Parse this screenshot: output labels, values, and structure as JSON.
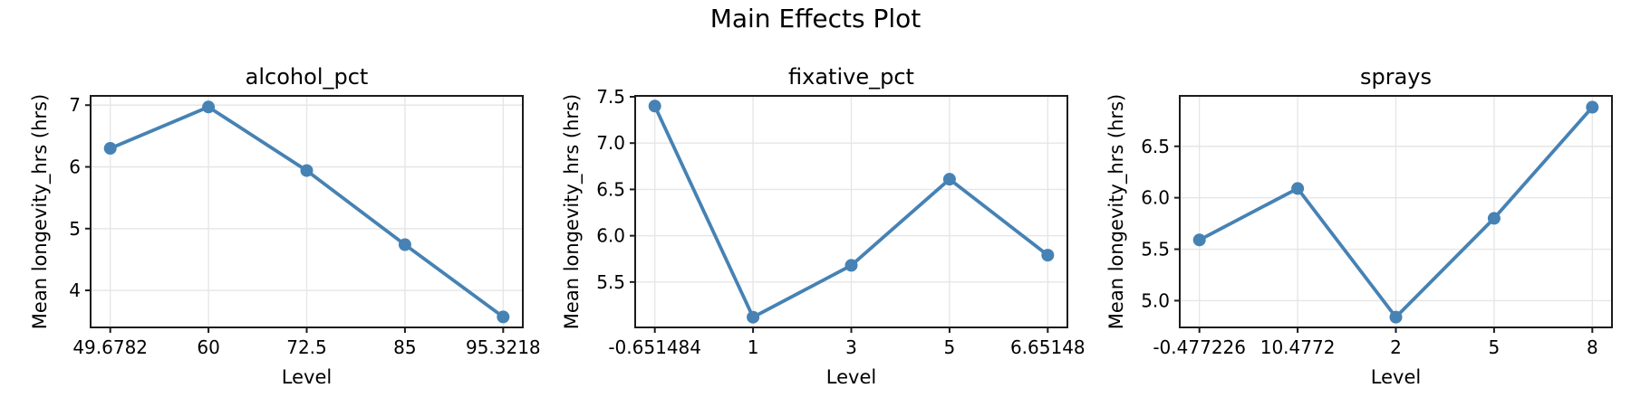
{
  "figure": {
    "suptitle": "Main Effects Plot",
    "accent_color": "#4682b4",
    "grid_color": "#e6e6e6",
    "spine_color": "#1c1c1c",
    "text_color": "#000000",
    "background_color": "#ffffff"
  },
  "chart_data": [
    {
      "type": "line",
      "title": "alcohol_pct",
      "xlabel": "Level",
      "ylabel": "Mean longevity_hrs (hrs)",
      "categories": [
        "49.6782",
        "60",
        "72.5",
        "85",
        "95.3218"
      ],
      "values": [
        6.3,
        6.97,
        5.94,
        4.74,
        3.57
      ],
      "ytick_labels": [
        "4",
        "5",
        "6",
        "7"
      ],
      "ytick_values": [
        4,
        5,
        6,
        7
      ],
      "ylim": [
        3.4,
        7.15
      ],
      "xlim": [
        -0.2,
        4.2
      ],
      "grid": true,
      "legend": null,
      "marker": "circle"
    },
    {
      "type": "line",
      "title": "fixative_pct",
      "xlabel": "Level",
      "ylabel": "Mean longevity_hrs (hrs)",
      "categories": [
        "-0.651484",
        "1",
        "3",
        "5",
        "6.65148"
      ],
      "values": [
        7.4,
        5.12,
        5.68,
        6.61,
        5.79
      ],
      "ytick_labels": [
        "5.5",
        "6.0",
        "6.5",
        "7.0",
        "7.5"
      ],
      "ytick_values": [
        5.5,
        6.0,
        6.5,
        7.0,
        7.5
      ],
      "ylim": [
        5.01,
        7.51
      ],
      "xlim": [
        -0.2,
        4.2
      ],
      "grid": true,
      "legend": null,
      "marker": "circle"
    },
    {
      "type": "line",
      "title": "sprays",
      "xlabel": "Level",
      "ylabel": "Mean longevity_hrs (hrs)",
      "categories": [
        "-0.477226",
        "10.4772",
        "2",
        "5",
        "8"
      ],
      "values": [
        5.59,
        6.09,
        4.84,
        5.8,
        6.88
      ],
      "ytick_labels": [
        "5.0",
        "5.5",
        "6.0",
        "6.5"
      ],
      "ytick_values": [
        5.0,
        5.5,
        6.0,
        6.5
      ],
      "ylim": [
        4.74,
        6.99
      ],
      "xlim": [
        -0.2,
        4.2
      ],
      "grid": true,
      "legend": null,
      "marker": "circle"
    }
  ]
}
